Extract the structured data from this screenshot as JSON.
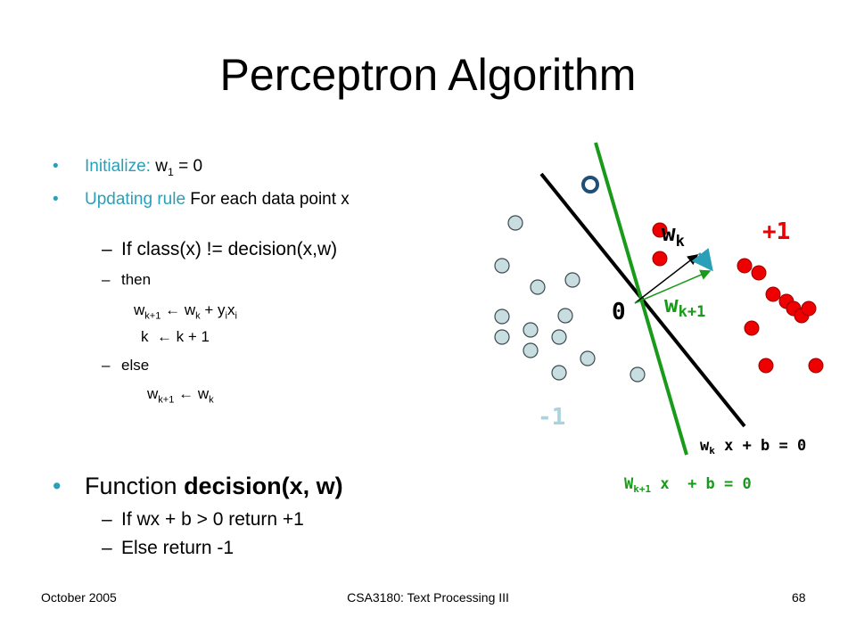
{
  "slide": {
    "title": "Perceptron Algorithm",
    "items": {
      "init": [
        "Initialize:",
        "w",
        "1",
        " = 0"
      ],
      "update": [
        "Updating rule",
        " For each data point x"
      ],
      "cond": "If class(x) != decision(x,w)",
      "then": "then",
      "step1": [
        "w",
        "k+1",
        " ← w",
        "k",
        " + y",
        "i",
        "x",
        "i"
      ],
      "step2": "k  ← k + 1",
      "else": "else",
      "step3": [
        "w",
        "k+1",
        " ← w",
        "k"
      ],
      "func": [
        "Function ",
        "decision(x, w)"
      ],
      "ret1": "If wx + b > 0 return +1",
      "ret2": "Else return -1"
    },
    "diagram": {
      "origin": "0",
      "w_k": [
        "w",
        "k"
      ],
      "w_k1": [
        "w",
        "k+1"
      ],
      "pos": "+1",
      "neg": "-1",
      "line1": [
        "w",
        "k",
        " x + b = 0"
      ],
      "line2": [
        "W",
        "k+1",
        " x  + b = 0"
      ]
    },
    "footer": {
      "date": "October 2005",
      "course": "CSA3180: Text Processing III",
      "page": "68"
    }
  }
}
